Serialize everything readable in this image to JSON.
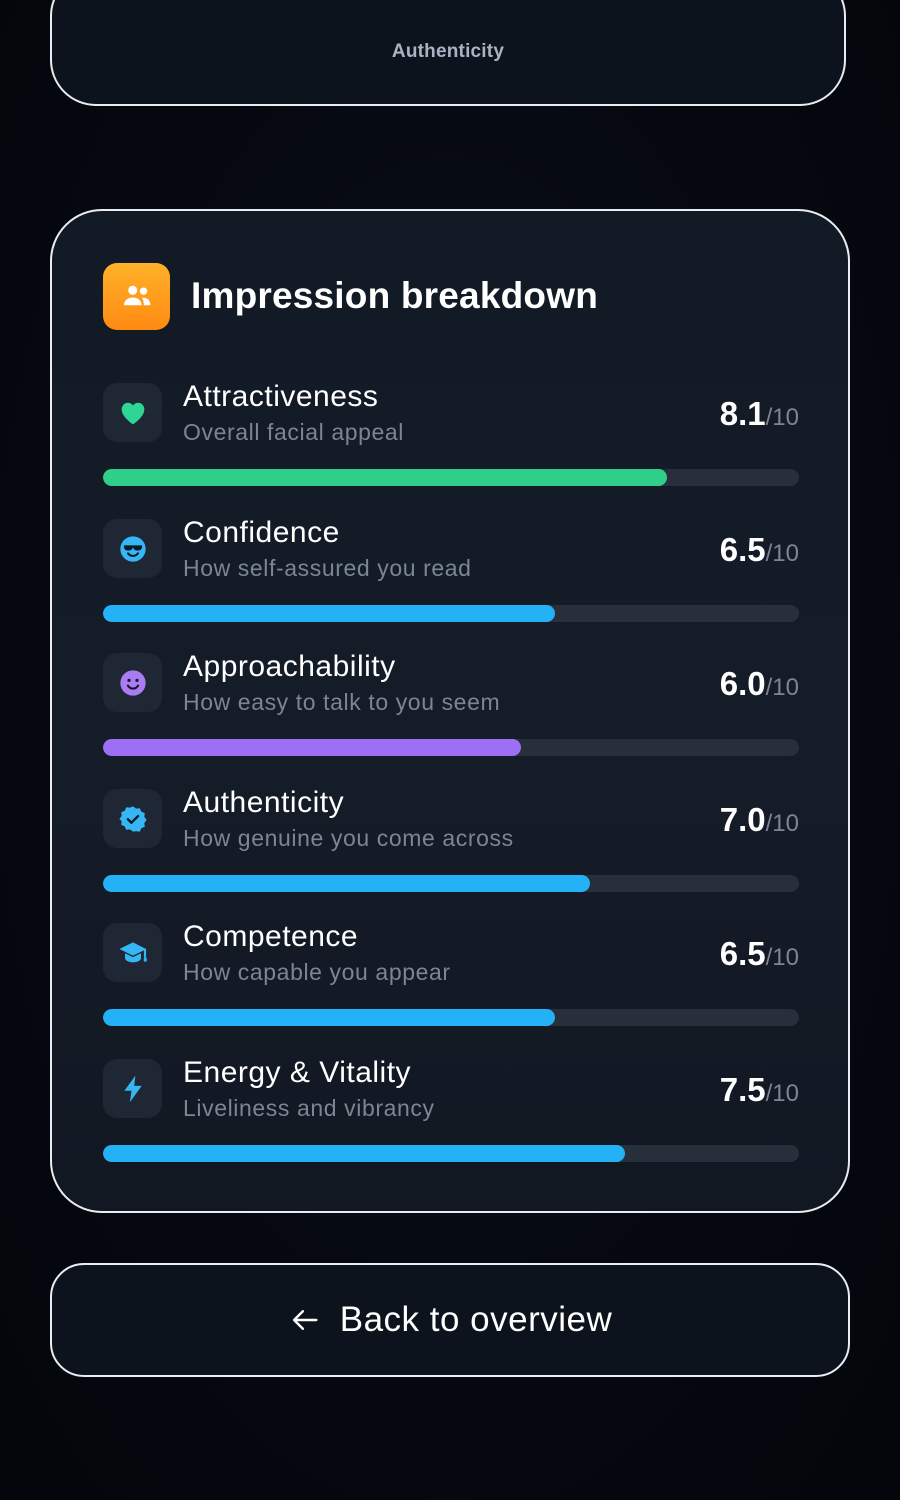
{
  "top_card": {
    "label": "Authenticity"
  },
  "breakdown": {
    "title": "Impression breakdown",
    "header_icon": "people-icon",
    "header_icon_color": "#ff9a1c",
    "score_suffix": "/10",
    "metrics": [
      {
        "name": "Attractiveness",
        "description": "Overall facial appeal",
        "score": "8.1",
        "progress": 0.81,
        "icon": "heart-icon",
        "icon_color": "#2ed696",
        "bar_color": "#2fcb86"
      },
      {
        "name": "Confidence",
        "description": "How self-assured you read",
        "score": "6.5",
        "progress": 0.65,
        "icon": "cool-face-icon",
        "icon_color": "#35b7f5",
        "bar_color": "#23aef0"
      },
      {
        "name": "Approachability",
        "description": "How easy to talk to you seem",
        "score": "6.0",
        "progress": 0.6,
        "icon": "smiley-icon",
        "icon_color": "#a97cf3",
        "bar_color": "#9b6cf0"
      },
      {
        "name": "Authenticity",
        "description": "How genuine you come across",
        "score": "7.0",
        "progress": 0.7,
        "icon": "verified-badge-icon",
        "icon_color": "#35b7f5",
        "bar_color": "#23aef0"
      },
      {
        "name": "Competence",
        "description": "How capable you appear",
        "score": "6.5",
        "progress": 0.65,
        "icon": "graduation-cap-icon",
        "icon_color": "#35b7f5",
        "bar_color": "#23aef0"
      },
      {
        "name": "Energy & Vitality",
        "description": "Liveliness and vibrancy",
        "score": "7.5",
        "progress": 0.75,
        "icon": "lightning-icon",
        "icon_color": "#35b7f5",
        "bar_color": "#23aef0"
      }
    ]
  },
  "back_button": {
    "label": "Back to overview",
    "icon": "arrow-left-icon"
  }
}
